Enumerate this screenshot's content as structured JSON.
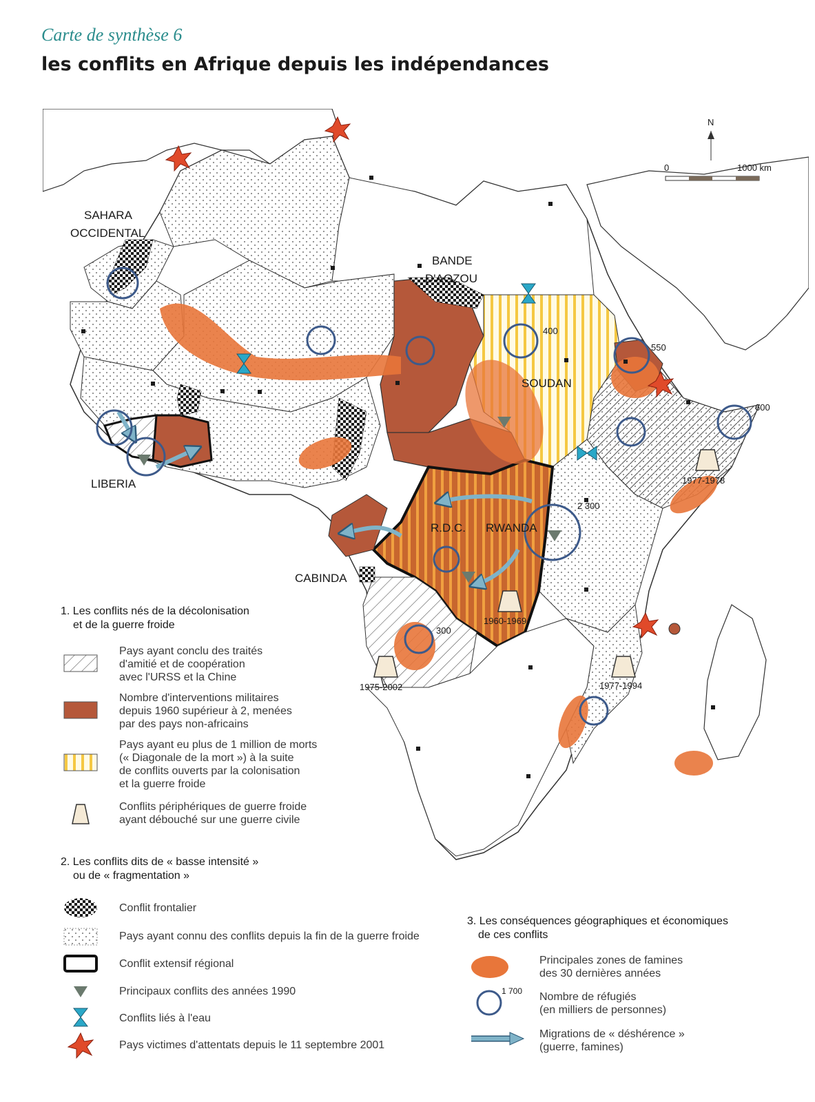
{
  "header": {
    "supertitle": "Carte de synthèse 6",
    "title": "les conflits en Afrique depuis les indépendances"
  },
  "north_arrow": "N",
  "scale_bar": {
    "start": "0",
    "end": "1000 km"
  },
  "map_labels": {
    "sahara": "SAHARA",
    "occidental": "OCCIDENTAL",
    "bande": "BANDE",
    "aozou": "D'AOZOU",
    "soudan": "SOUDAN",
    "liberia": "LIBERIA",
    "rdc": "R.D.C.",
    "rwanda": "RWANDA",
    "cabinda": "CABINDA"
  },
  "refugee_values": {
    "sudan": "400",
    "eritrea": "550",
    "somalia": "600",
    "great_lakes": "2 300",
    "angola": "300"
  },
  "civil_war_dates": {
    "ethiopia": "1977-1978",
    "congo": "1960-1969",
    "angola": "1975-2002",
    "mozambique": "1977-1994"
  },
  "legend": {
    "section1": {
      "title_line1": "1. Les conflits nés de la décolonisation",
      "title_line2": "et de la guerre froide",
      "items": [
        [
          "Pays ayant conclu des traités",
          "d'amitié et de coopération",
          "avec l'URSS et la Chine"
        ],
        [
          "Nombre d'interventions militaires",
          "depuis 1960 supérieur à 2, menées",
          "par des pays non-africains"
        ],
        [
          "Pays ayant eu plus de 1 million de morts",
          "(« Diagonale de la mort ») à la suite",
          "de conflits ouverts par la colonisation",
          "et la guerre froide"
        ],
        [
          "Conflits périphériques de guerre froide",
          "ayant débouché sur une guerre civile"
        ]
      ]
    },
    "section2": {
      "title_line1": "2. Les conflits dits de « basse intensité »",
      "title_line2": "ou de « fragmentation »",
      "items": [
        "Conflit frontalier",
        "Pays ayant connu des conflits depuis la fin de la guerre froide",
        "Conflit extensif régional",
        "Principaux conflits des années 1990",
        "Conflits liés à l'eau",
        "Pays victimes d'attentats depuis le 11 septembre 2001"
      ]
    },
    "section3": {
      "title_line1": "3. Les conséquences géographiques et économiques",
      "title_line2": "de ces conflits",
      "items": [
        [
          "Principales zones de famines",
          "des 30 dernières années"
        ],
        [
          "Nombre de réfugiés",
          "(en milliers de personnes)"
        ],
        [
          "Migrations de « déshérence »",
          "(guerre, famines)"
        ]
      ],
      "refugee_sample_value": "1 700"
    }
  },
  "colors": {
    "brown": "#b5583a",
    "famine_orange": "#e8763a",
    "diagonal_yellow": "#f5c842",
    "circle_blue": "#3d5a8a",
    "water_cyan": "#2aa8c8",
    "star_red": "#e04a2a"
  }
}
